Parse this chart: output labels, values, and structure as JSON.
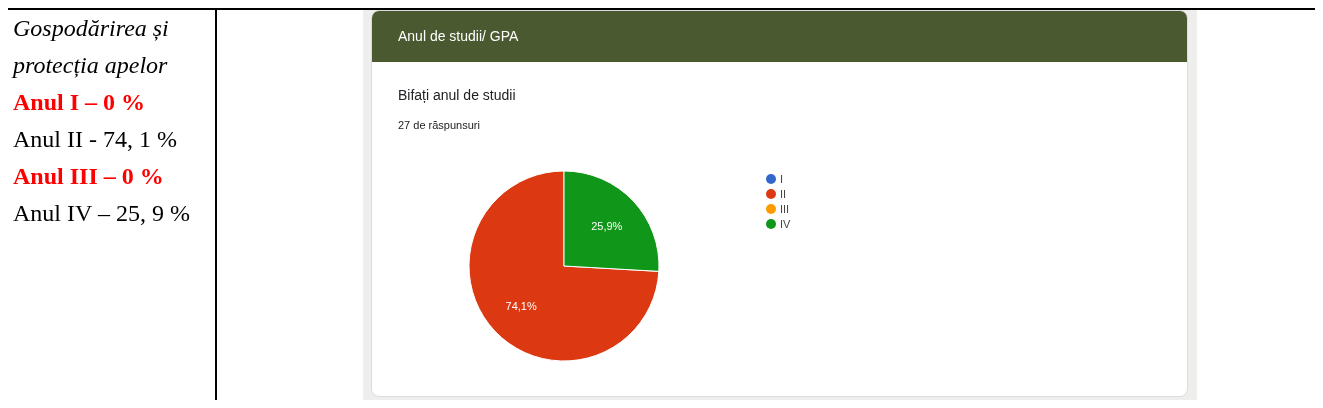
{
  "chart_data": {
    "type": "pie",
    "title": "Bifați anul de studii",
    "subtitle": "27 de răspunsuri",
    "annotations": [
      "Anul de studii/ GPA",
      "Gospodărirea și protecția apelor",
      "Anul I  –  0 %",
      "Anul II -  74, 1 %",
      "Anul III – 0 %",
      "Anul IV – 25, 9 %"
    ],
    "categories": [
      "I",
      "II",
      "III",
      "IV"
    ],
    "values": [
      0,
      74.1,
      0,
      25.9
    ],
    "colors": [
      "#3366cc",
      "#dc3912",
      "#ff9900",
      "#109618"
    ],
    "value_labels": [
      null,
      "74,1%",
      null,
      "25,9%"
    ],
    "legend": "right"
  }
}
